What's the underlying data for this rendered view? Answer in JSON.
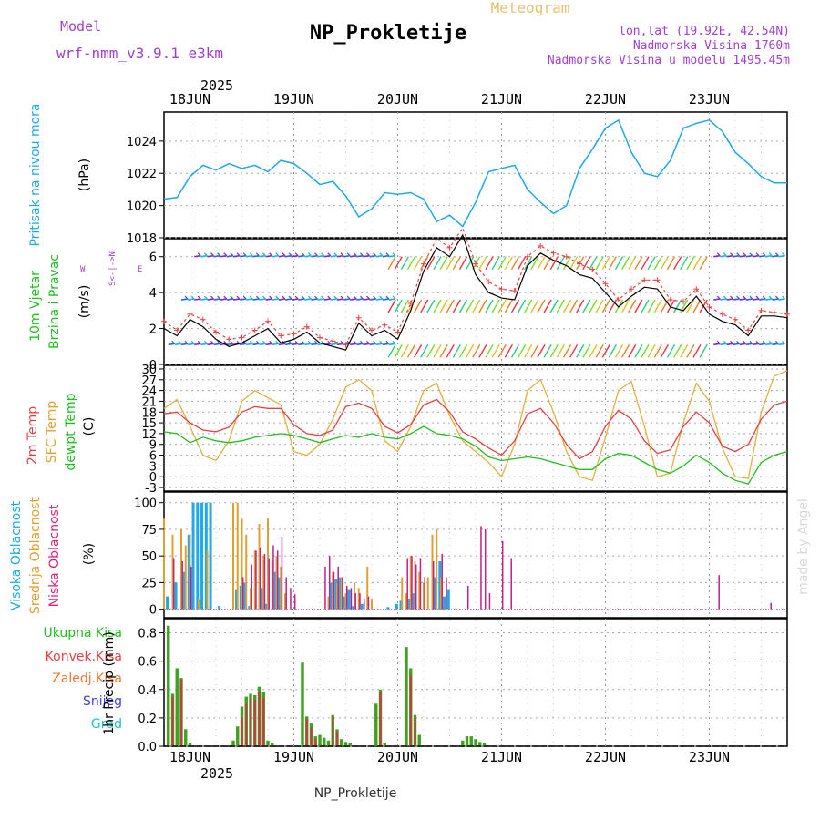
{
  "header": {
    "model_label": "Model",
    "model_name": "wrf-nmm_v3.9.1  e3km",
    "title": "NP_Prokletije",
    "meteogram_label": "Meteogram",
    "lonlat": "lon,lat (19.92E, 42.54N)",
    "altitude": "Nadmorska Visina 1760m",
    "model_altitude": "Nadmorska Visina u modelu 1495.45m"
  },
  "axis": {
    "year": "2025",
    "days": [
      "18JUN",
      "19JUN",
      "20JUN",
      "21JUN",
      "22JUN",
      "23JUN"
    ],
    "start_hour": -6,
    "end_hour": 138
  },
  "panels": {
    "pressure": {
      "title": "Pritisak na nivou mora",
      "unit": "(hPa)"
    },
    "wind": {
      "title1": "10m Vjetar",
      "title2": "Brzina i Pravac",
      "unit": "(m/s)",
      "compass_ns": "S<-|->N",
      "compass_w": "W",
      "compass_e": "E"
    },
    "temperature": {
      "title_2m": "2m Temp",
      "title_sfc": "SFC Temp",
      "title_dewpt": "dewpt Temp",
      "unit": "(C)"
    },
    "clouds": {
      "title_high": "Visoka Oblacnost",
      "title_mid": "Srednja Oblacnost",
      "title_low": "Niska Oblacnost",
      "unit": "(%)"
    },
    "precip": {
      "legend_total": "Ukupna Kisa",
      "legend_conv": "Konvek.Kisa",
      "legend_frozen": "Zaledj.Kisa",
      "legend_snow": "Snijeg",
      "legend_hail": "Grad",
      "unit": "1hr Precip (mm)"
    }
  },
  "footer": {
    "station": "NP_Prokletije",
    "watermark": "made by Angel"
  },
  "colors": {
    "pressure": "#20a8e8",
    "t2m": "#e84040",
    "tsfc": "#e0b040",
    "dewpt": "#20c020",
    "high": "#20a8e8",
    "mid": "#e0a030",
    "low": "#c0208a",
    "precip": "#40a020",
    "conv": "#c04040"
  },
  "chart_data": [
    {
      "type": "line",
      "title": "Pritisak na nivou mora",
      "ylabel": "(hPa)",
      "ylim": [
        1018,
        1025.8
      ],
      "yticks": [
        1018,
        1020,
        1022,
        1024
      ],
      "x_hours": [
        -6,
        -3,
        0,
        3,
        6,
        9,
        12,
        15,
        18,
        21,
        24,
        27,
        30,
        33,
        36,
        39,
        42,
        45,
        48,
        51,
        54,
        57,
        60,
        63,
        66,
        69,
        72,
        75,
        78,
        81,
        84,
        87,
        90,
        93,
        96,
        99,
        102,
        105,
        108,
        111,
        114,
        117,
        120,
        123,
        126,
        129,
        132,
        135,
        138
      ],
      "values": [
        1020.4,
        1020.5,
        1021.8,
        1022.5,
        1022.2,
        1022.6,
        1022.3,
        1022.5,
        1022.1,
        1022.8,
        1022.6,
        1022.0,
        1021.3,
        1021.5,
        1020.6,
        1019.3,
        1019.8,
        1020.8,
        1020.7,
        1020.8,
        1020.4,
        1019.0,
        1019.4,
        1018.7,
        1020.2,
        1022.1,
        1022.3,
        1022.5,
        1021.0,
        1020.2,
        1019.5,
        1020.0,
        1022.3,
        1023.5,
        1024.8,
        1025.3,
        1023.3,
        1022.0,
        1021.8,
        1022.8,
        1024.8,
        1025.1,
        1025.3,
        1024.6,
        1023.3,
        1022.6,
        1021.8,
        1021.4,
        1021.4
      ],
      "series_name": "MSLP"
    },
    {
      "type": "line",
      "title": "10m Vjetar Brzina i Pravac",
      "ylabel": "(m/s)",
      "ylim": [
        0,
        7
      ],
      "yticks": [
        0,
        2,
        4,
        6
      ],
      "x_hours": [
        -6,
        -3,
        0,
        3,
        6,
        9,
        12,
        15,
        18,
        21,
        24,
        27,
        30,
        33,
        36,
        39,
        42,
        45,
        48,
        51,
        54,
        57,
        60,
        63,
        66,
        69,
        72,
        75,
        78,
        81,
        84,
        87,
        90,
        93,
        96,
        99,
        102,
        105,
        108,
        111,
        114,
        117,
        120,
        123,
        126,
        129,
        132,
        135,
        138
      ],
      "series": [
        {
          "name": "Brzina (model)",
          "values": [
            2.0,
            1.6,
            2.5,
            2.1,
            1.4,
            1.0,
            1.2,
            1.6,
            2.0,
            1.2,
            1.4,
            1.8,
            1.2,
            1.0,
            0.8,
            2.3,
            1.6,
            1.9,
            1.4,
            3.0,
            5.2,
            6.5,
            6.0,
            7.2,
            5.0,
            4.0,
            3.7,
            3.6,
            5.5,
            6.2,
            5.8,
            5.5,
            5.0,
            4.8,
            4.0,
            3.2,
            3.8,
            4.3,
            4.2,
            3.2,
            3.0,
            3.8,
            2.8,
            2.4,
            2.2,
            1.6,
            2.7,
            2.7,
            2.6
          ]
        },
        {
          "name": "Brzina (udari)",
          "values": [
            2.4,
            1.9,
            2.8,
            2.5,
            1.8,
            1.4,
            1.5,
            1.9,
            2.4,
            1.6,
            1.7,
            2.1,
            1.5,
            1.3,
            1.1,
            2.6,
            1.9,
            2.2,
            1.8,
            3.4,
            5.6,
            7.0,
            6.5,
            7.6,
            5.6,
            4.6,
            4.2,
            4.1,
            6.0,
            6.6,
            6.2,
            6.0,
            5.6,
            5.3,
            4.5,
            3.6,
            4.2,
            4.7,
            4.7,
            3.6,
            3.5,
            4.2,
            3.2,
            2.8,
            2.5,
            1.9,
            3.0,
            2.9,
            2.8
          ]
        }
      ],
      "direction_bands": [
        6.0,
        3.6,
        1.1
      ]
    },
    {
      "type": "line",
      "title": "Temperatura",
      "ylabel": "(C)",
      "ylim": [
        -4,
        31
      ],
      "yticks": [
        -3,
        0,
        3,
        6,
        9,
        12,
        15,
        18,
        21,
        24,
        27,
        30
      ],
      "x_hours": [
        -6,
        -3,
        0,
        3,
        6,
        9,
        12,
        15,
        18,
        21,
        24,
        27,
        30,
        33,
        36,
        39,
        42,
        45,
        48,
        51,
        54,
        57,
        60,
        63,
        66,
        69,
        72,
        75,
        78,
        81,
        84,
        87,
        90,
        93,
        96,
        99,
        102,
        105,
        108,
        111,
        114,
        117,
        120,
        123,
        126,
        129,
        132,
        135,
        138
      ],
      "series": [
        {
          "name": "2m Temp",
          "values": [
            17.5,
            18.0,
            15.0,
            13.0,
            12.5,
            13.8,
            18.0,
            19.5,
            19.0,
            19.0,
            14.5,
            12.0,
            11.5,
            13.0,
            19.5,
            20.5,
            19.0,
            14.0,
            12.2,
            14.5,
            20.0,
            21.5,
            18.0,
            12.5,
            10.5,
            8.0,
            6.0,
            10.0,
            17.5,
            19.0,
            15.0,
            9.0,
            5.0,
            7.0,
            14.0,
            18.5,
            16.0,
            10.0,
            6.5,
            7.5,
            14.0,
            18.0,
            15.0,
            8.5,
            7.0,
            9.0,
            16.0,
            20.0,
            21.0
          ]
        },
        {
          "name": "SFC Temp",
          "values": [
            19.0,
            21.5,
            14.0,
            6.0,
            4.5,
            10.0,
            21.0,
            24.0,
            22.0,
            20.0,
            7.0,
            6.0,
            9.0,
            16.0,
            25.0,
            27.0,
            24.0,
            10.0,
            7.0,
            14.0,
            24.0,
            26.0,
            17.0,
            10.0,
            7.0,
            4.0,
            0.0,
            9.0,
            24.0,
            27.0,
            18.0,
            7.0,
            0.0,
            -1.0,
            11.0,
            24.0,
            26.5,
            14.0,
            0.0,
            1.0,
            15.0,
            26.0,
            21.0,
            8.0,
            0.0,
            -0.5,
            18.0,
            28.0,
            29.5
          ]
        },
        {
          "name": "dewpt Temp",
          "values": [
            12.5,
            12.0,
            9.5,
            11.0,
            10.0,
            9.5,
            10.0,
            11.0,
            11.5,
            12.0,
            11.5,
            10.5,
            9.5,
            10.5,
            11.5,
            11.0,
            12.0,
            11.0,
            10.5,
            12.0,
            14.0,
            12.0,
            11.5,
            10.5,
            8.5,
            5.5,
            4.5,
            5.0,
            5.5,
            5.0,
            4.0,
            3.0,
            2.0,
            2.0,
            5.0,
            6.5,
            6.0,
            4.0,
            2.0,
            1.0,
            3.0,
            6.0,
            4.0,
            1.0,
            -1.0,
            -2.0,
            4.0,
            6.0,
            7.0
          ]
        }
      ]
    },
    {
      "type": "bar",
      "title": "Oblacnost",
      "ylabel": "(%)",
      "ylim": [
        -8,
        110
      ],
      "yticks": [
        0,
        25,
        50,
        75,
        100
      ],
      "series": [
        {
          "name": "Visoka Oblacnost",
          "x_hours": [
            -5,
            -3,
            -1,
            0,
            1,
            2,
            3,
            4,
            5,
            7,
            11,
            12,
            13,
            14,
            17,
            18,
            20,
            21,
            33,
            34,
            35,
            36,
            37,
            38,
            40,
            46,
            48,
            49,
            51,
            52,
            57,
            58,
            59,
            60
          ],
          "values": [
            12,
            25,
            35,
            70,
            100,
            100,
            100,
            100,
            100,
            3,
            18,
            22,
            25,
            3,
            20,
            5,
            35,
            30,
            25,
            28,
            30,
            12,
            18,
            3,
            5,
            2,
            5,
            8,
            10,
            15,
            30,
            45,
            12,
            18
          ]
        },
        {
          "name": "Srednja Oblacnost",
          "x_hours": [
            -6,
            -4,
            -2,
            -1,
            0,
            2,
            4,
            10,
            11,
            12,
            13,
            14,
            15,
            16,
            17,
            18,
            19,
            20,
            21,
            22,
            32,
            33,
            34,
            35,
            36,
            38,
            39,
            41,
            42,
            49,
            50,
            51,
            52,
            53,
            54,
            55,
            56,
            57,
            58
          ],
          "values": [
            85,
            70,
            75,
            60,
            70,
            10,
            55,
            100,
            100,
            85,
            70,
            20,
            55,
            80,
            50,
            85,
            45,
            50,
            40,
            15,
            12,
            35,
            25,
            30,
            15,
            25,
            20,
            40,
            10,
            30,
            15,
            50,
            45,
            35,
            25,
            30,
            70,
            75,
            30
          ]
        },
        {
          "name": "Niska Oblacnost",
          "x_hours": [
            -4,
            -2,
            0,
            12,
            14,
            15,
            16,
            17,
            18,
            19,
            20,
            21,
            22,
            23,
            24,
            31,
            32,
            33,
            34,
            35,
            36,
            37,
            38,
            39,
            40,
            41,
            50,
            51,
            52,
            53,
            54,
            56,
            58,
            59,
            64,
            67,
            68,
            69,
            72,
            74,
            122,
            134
          ],
          "values": [
            48,
            45,
            40,
            30,
            42,
            55,
            58,
            52,
            48,
            60,
            55,
            68,
            30,
            20,
            14,
            40,
            50,
            35,
            40,
            30,
            22,
            20,
            15,
            15,
            10,
            12,
            48,
            50,
            42,
            48,
            30,
            45,
            52,
            30,
            22,
            78,
            75,
            15,
            64,
            48,
            32,
            6
          ]
        }
      ]
    },
    {
      "type": "bar",
      "title": "1hr Precip",
      "ylabel": "(mm)",
      "ylim": [
        0,
        0.9
      ],
      "yticks": [
        0.0,
        0.2,
        0.4,
        0.6,
        0.8
      ],
      "series": [
        {
          "name": "Ukupna Kisa",
          "x_hours": [
            -5,
            -4,
            -3,
            -2,
            -1,
            0,
            10,
            11,
            12,
            13,
            14,
            15,
            16,
            17,
            18,
            19,
            26,
            27,
            28,
            29,
            30,
            31,
            32,
            33,
            34,
            35,
            36,
            37,
            43,
            44,
            45,
            50,
            51,
            52,
            53,
            63,
            64,
            65,
            66,
            67,
            68
          ],
          "values": [
            0.85,
            0.37,
            0.55,
            0.48,
            0.12,
            0.02,
            0.04,
            0.14,
            0.28,
            0.35,
            0.37,
            0.36,
            0.42,
            0.38,
            0.04,
            0.02,
            0.59,
            0.21,
            0.16,
            0.07,
            0.08,
            0.06,
            0.04,
            0.22,
            0.12,
            0.05,
            0.03,
            0.02,
            0.3,
            0.4,
            0.02,
            0.7,
            0.55,
            0.22,
            0.08,
            0.04,
            0.07,
            0.07,
            0.05,
            0.03,
            0.02
          ]
        },
        {
          "name": "Konvek.Kisa",
          "x_hours": [
            -4,
            -2,
            12,
            13,
            14,
            15,
            16,
            17,
            27,
            28,
            29,
            33,
            34,
            44,
            51,
            52
          ],
          "values": [
            0.35,
            0.48,
            0.2,
            0.3,
            0.34,
            0.33,
            0.38,
            0.34,
            0.19,
            0.13,
            0.05,
            0.2,
            0.1,
            0.38,
            0.5,
            0.2
          ]
        }
      ]
    }
  ]
}
